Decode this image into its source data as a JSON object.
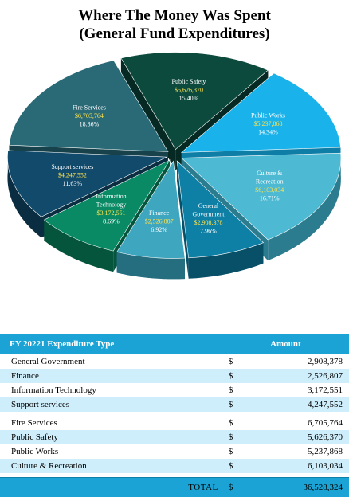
{
  "chart_data": {
    "type": "pie",
    "title": "Where The Money Was Spent",
    "subtitle": "(General Fund Expenditures)",
    "slices": [
      {
        "name": "Public Safety",
        "label_lines": [
          "Public Safety"
        ],
        "amount_label": "$5,626,370",
        "percent_label": "15.40%",
        "value": 15.4,
        "color": "#0b4a3d",
        "side": "#062a23"
      },
      {
        "name": "Public Works",
        "label_lines": [
          "Public Works"
        ],
        "amount_label": "$5,237,868",
        "percent_label": "14.34%",
        "value": 14.34,
        "color": "#1ab2ea",
        "side": "#0f7ea6"
      },
      {
        "name": "Culture & Recreation",
        "label_lines": [
          "Culture &",
          "Recreation"
        ],
        "amount_label": "$6,103,034",
        "percent_label": "16.71%",
        "value": 16.71,
        "color": "#4db9d2",
        "side": "#2c7c8f"
      },
      {
        "name": "General Government",
        "label_lines": [
          "General",
          "Government"
        ],
        "amount_label": "$2,908,378",
        "percent_label": "7.96%",
        "value": 7.96,
        "color": "#0e7fa5",
        "side": "#084f68"
      },
      {
        "name": "Finance",
        "label_lines": [
          "Finance"
        ],
        "amount_label": "$2,526,807",
        "percent_label": "6.92%",
        "value": 6.92,
        "color": "#3fa6c0",
        "side": "#256e80"
      },
      {
        "name": "Information Technology",
        "label_lines": [
          "Information",
          "Technology"
        ],
        "amount_label": "$3,172,551",
        "percent_label": "8.69%",
        "value": 8.69,
        "color": "#0a8a64",
        "side": "#05553d"
      },
      {
        "name": "Support services",
        "label_lines": [
          "Support services"
        ],
        "amount_label": "$4,247,552",
        "percent_label": "11.63%",
        "value": 11.63,
        "color": "#124a6b",
        "side": "#0a2d42"
      },
      {
        "name": "Fire Services",
        "label_lines": [
          "Fire Services"
        ],
        "amount_label": "$6,705,764",
        "percent_label": "18.36%",
        "value": 18.36,
        "color": "#2a6a77",
        "side": "#17424b"
      }
    ]
  },
  "table": {
    "header_type": "FY 20221 Expenditure Type",
    "header_amount": "Amount",
    "rows": [
      {
        "type": "General Government",
        "dollar": "$",
        "amount": "2,908,378"
      },
      {
        "type": "Finance",
        "dollar": "$",
        "amount": "2,526,807"
      },
      {
        "type": "Information Technology",
        "dollar": "$",
        "amount": "3,172,551"
      },
      {
        "type": "Support services",
        "dollar": "$",
        "amount": "4,247,552"
      },
      {
        "type": "Fire Services",
        "dollar": "$",
        "amount": "6,705,764"
      },
      {
        "type": "Public Safety",
        "dollar": "$",
        "amount": "5,626,370"
      },
      {
        "type": "Public Works",
        "dollar": "$",
        "amount": "5,237,868"
      },
      {
        "type": "Culture & Recreation",
        "dollar": "$",
        "amount": "6,103,034"
      }
    ],
    "total_label": "TOTAL",
    "total_dollar": "$",
    "total_amount": "36,528,324"
  }
}
